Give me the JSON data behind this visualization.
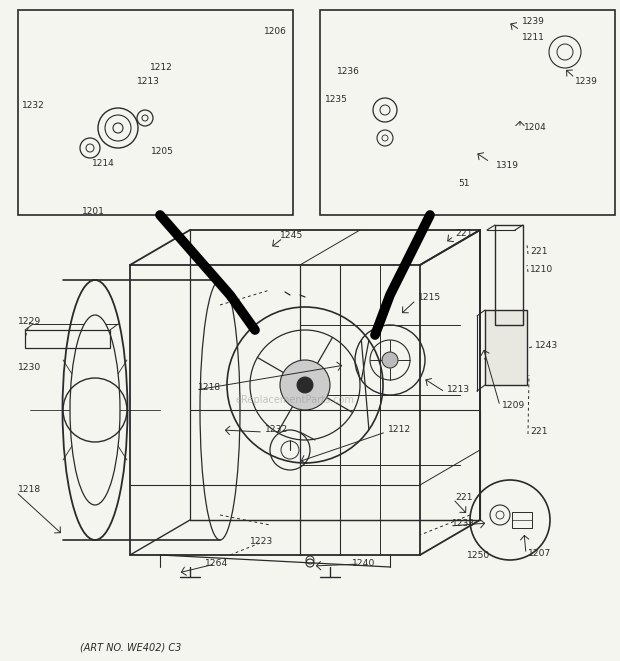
{
  "footer": "(ART NO. WE402) C3",
  "background_color": "#f5f5f0",
  "line_color": "#2a2a2a",
  "watermark": "eReplacementParts.com",
  "fig_w": 6.2,
  "fig_h": 6.61,
  "dpi": 100
}
